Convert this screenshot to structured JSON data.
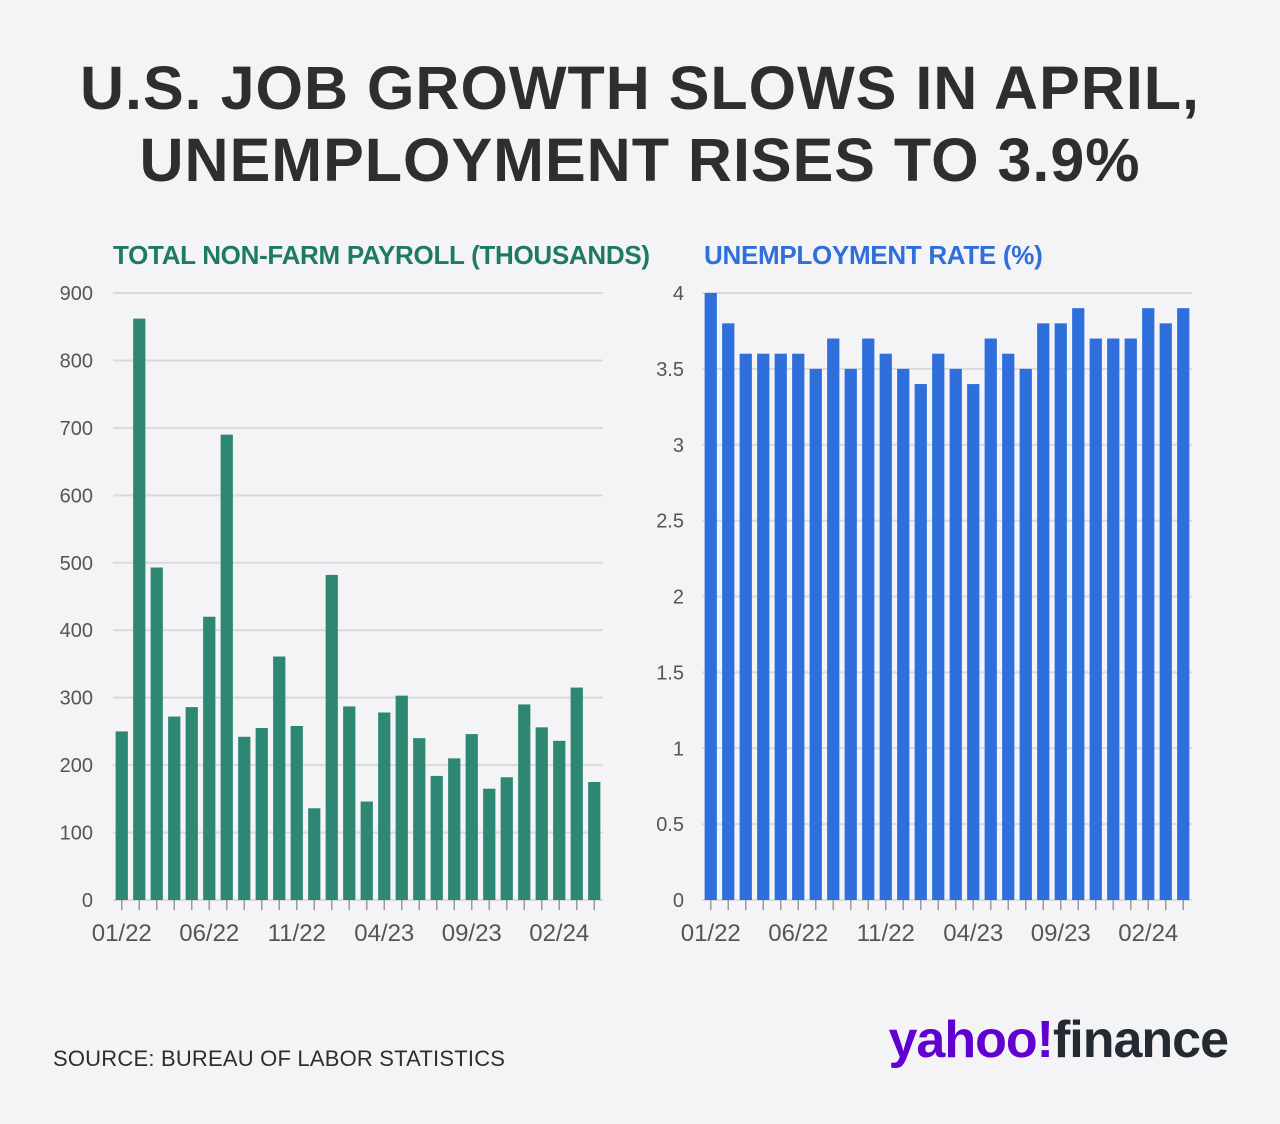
{
  "headline": {
    "line1": "U.S. JOB GROWTH SLOWS IN APRIL,",
    "line2": "UNEMPLOYMENT RISES TO 3.9%"
  },
  "colors": {
    "payroll_bar": "#2e8772",
    "rate_bar": "#2f6fdc",
    "payroll_title": "#1f7a62",
    "rate_title": "#2f6fdc",
    "grid": "#d9dadd"
  },
  "source": "SOURCE: BUREAU OF LABOR STATISTICS",
  "logo": {
    "brand": "yahoo!",
    "product": "finance"
  },
  "chart_data": [
    {
      "type": "bar",
      "title": "TOTAL NON-FARM PAYROLL (THOUSANDS)",
      "xlabel": "",
      "ylabel": "",
      "ylim": [
        0,
        900
      ],
      "yticks": [
        "0",
        "100",
        "200",
        "300",
        "400",
        "500",
        "600",
        "700",
        "800",
        "900"
      ],
      "ytick_values": [
        0,
        100,
        200,
        300,
        400,
        500,
        600,
        700,
        800,
        900
      ],
      "xtick_labels": [
        "01/22",
        "06/22",
        "11/22",
        "04/23",
        "09/23",
        "02/24"
      ],
      "xtick_indices": [
        0,
        5,
        10,
        15,
        20,
        25
      ],
      "categories": [
        "01/22",
        "02/22",
        "03/22",
        "04/22",
        "05/22",
        "06/22",
        "07/22",
        "08/22",
        "09/22",
        "10/22",
        "11/22",
        "12/22",
        "01/23",
        "02/23",
        "03/23",
        "04/23",
        "05/23",
        "06/23",
        "07/23",
        "08/23",
        "09/23",
        "10/23",
        "11/23",
        "12/23",
        "01/24",
        "02/24",
        "03/24",
        "04/24"
      ],
      "values": [
        250,
        862,
        493,
        272,
        286,
        420,
        690,
        242,
        255,
        361,
        258,
        136,
        482,
        287,
        146,
        278,
        303,
        240,
        184,
        210,
        246,
        165,
        182,
        290,
        256,
        236,
        315,
        175
      ],
      "grid": true
    },
    {
      "type": "bar",
      "title": "UNEMPLOYMENT RATE (%)",
      "xlabel": "",
      "ylabel": "",
      "ylim": [
        0,
        4
      ],
      "yticks": [
        "0",
        "0.5",
        "1",
        "1.5",
        "2",
        "2.5",
        "3",
        "3.5",
        "4"
      ],
      "ytick_values": [
        0,
        0.5,
        1,
        1.5,
        2,
        2.5,
        3,
        3.5,
        4
      ],
      "xtick_labels": [
        "01/22",
        "06/22",
        "11/22",
        "04/23",
        "09/23",
        "02/24"
      ],
      "xtick_indices": [
        0,
        5,
        10,
        15,
        20,
        25
      ],
      "categories": [
        "01/22",
        "02/22",
        "03/22",
        "04/22",
        "05/22",
        "06/22",
        "07/22",
        "08/22",
        "09/22",
        "10/22",
        "11/22",
        "12/22",
        "01/23",
        "02/23",
        "03/23",
        "04/23",
        "05/23",
        "06/23",
        "07/23",
        "08/23",
        "09/23",
        "10/23",
        "11/23",
        "12/23",
        "01/24",
        "02/24",
        "03/24",
        "04/24"
      ],
      "values": [
        4.0,
        3.8,
        3.6,
        3.6,
        3.6,
        3.6,
        3.5,
        3.7,
        3.5,
        3.7,
        3.6,
        3.5,
        3.4,
        3.6,
        3.5,
        3.4,
        3.7,
        3.6,
        3.5,
        3.8,
        3.8,
        3.9,
        3.7,
        3.7,
        3.7,
        3.9,
        3.8,
        3.9
      ],
      "grid": true
    }
  ]
}
